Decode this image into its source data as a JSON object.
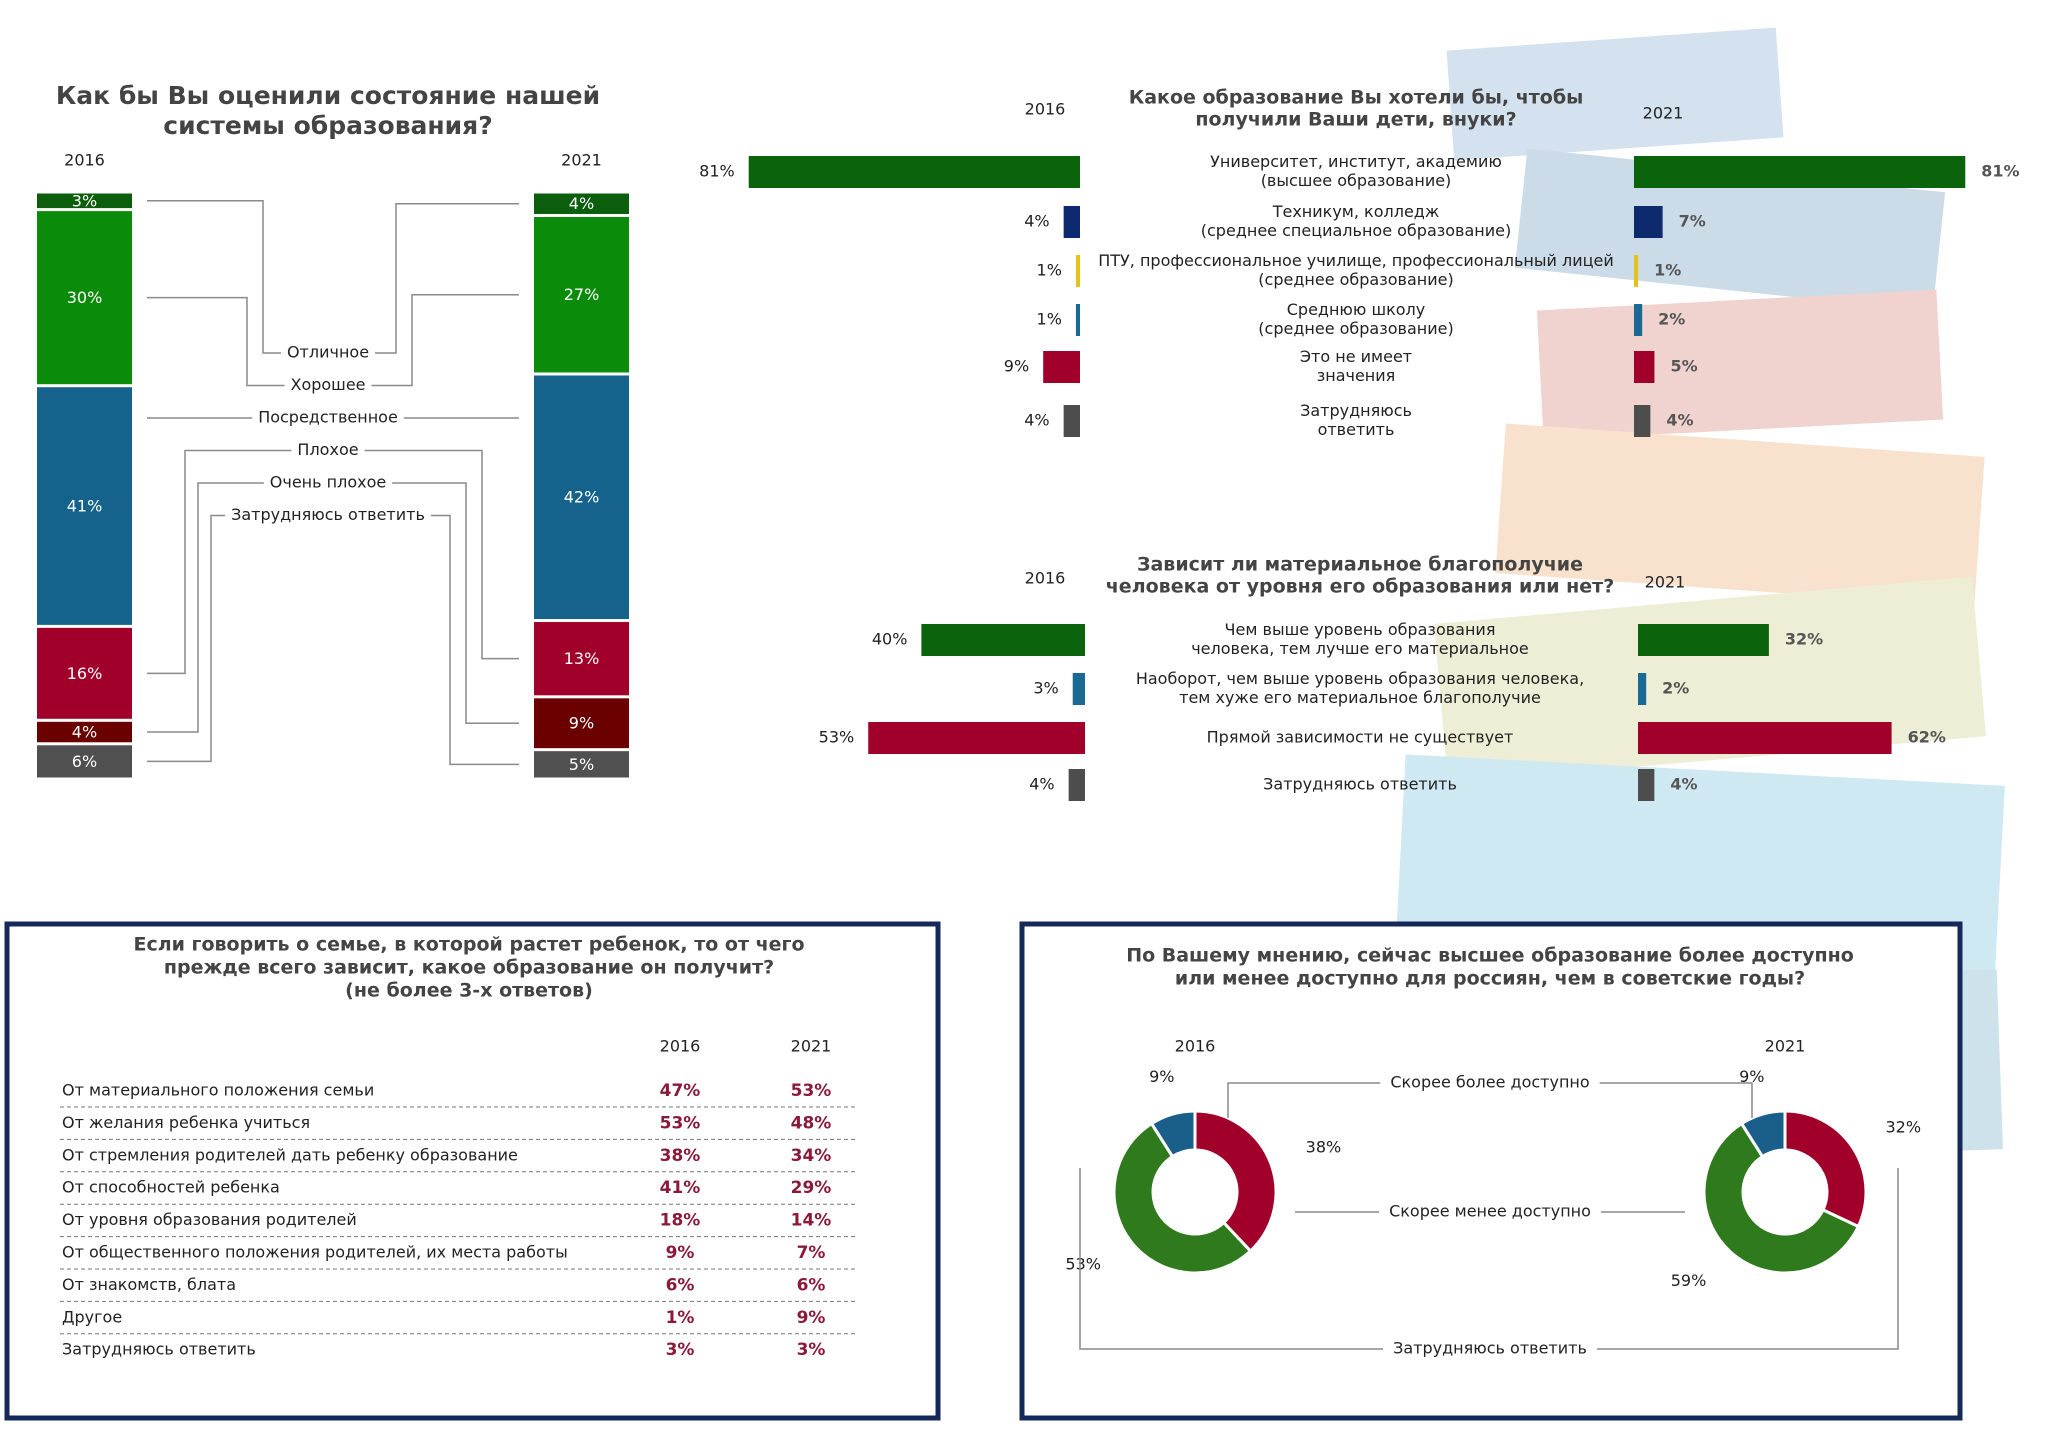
{
  "chart_data": [
    {
      "type": "stacked_bar",
      "title": [
        "Как бы Вы оценили состояние нашей",
        "системы образования?"
      ],
      "categories": [
        "2016",
        "2021"
      ],
      "ylim": [
        0,
        100
      ],
      "series": [
        {
          "name": "Отличное",
          "color": "#0b5e0b",
          "values": [
            3,
            4
          ],
          "value_labels": [
            "3%",
            "4%"
          ]
        },
        {
          "name": "Хорошее",
          "color": "#0a8c0a",
          "values": [
            30,
            27
          ],
          "value_labels": [
            "30%",
            "27%"
          ]
        },
        {
          "name": "Посредственное",
          "color": "#15628d",
          "values": [
            41,
            42
          ],
          "value_labels": [
            "41%",
            "42%"
          ]
        },
        {
          "name": "Плохое",
          "color": "#a1002b",
          "values": [
            16,
            13
          ],
          "value_labels": [
            "16%",
            "13%"
          ]
        },
        {
          "name": "Очень плохое",
          "color": "#6a0000",
          "values": [
            4,
            9
          ],
          "value_labels": [
            "4%",
            "9%"
          ]
        },
        {
          "name": "Затрудняюсь ответить",
          "color": "#505050",
          "values": [
            6,
            5
          ],
          "value_labels": [
            "6%",
            "5%"
          ]
        }
      ]
    },
    {
      "type": "butterfly",
      "title": [
        "Какое образование Вы хотели бы, чтобы",
        "получили Ваши дети, внуки?"
      ],
      "categories": [
        [
          "Университет, институт, академию",
          "(высшее образование)"
        ],
        [
          "Техникум, колледж",
          "(среднее специальное образование)"
        ],
        [
          "ПТУ, профессиональное училище, профессиональный лицей",
          "(среднее образование)"
        ],
        [
          "Среднюю школу",
          "(среднее образование)"
        ],
        [
          "Это не имеет",
          "значения"
        ],
        [
          "Затрудняюсь",
          "ответить"
        ]
      ],
      "colors": [
        "#0b640b",
        "#0d2a6e",
        "#e3c21a",
        "#1a6a94",
        "#a1002b",
        "#4d4d4d"
      ],
      "xlim": [
        0,
        100
      ],
      "series": [
        {
          "name": "2016",
          "values": [
            81,
            4,
            1,
            1,
            9,
            4
          ],
          "value_labels": [
            "81%",
            "4%",
            "1%",
            "1%",
            "9%",
            "4%"
          ]
        },
        {
          "name": "2021",
          "values": [
            81,
            7,
            1,
            2,
            5,
            4
          ],
          "value_labels": [
            "81%",
            "7%",
            "1%",
            "2%",
            "5%",
            "4%"
          ]
        }
      ]
    },
    {
      "type": "butterfly",
      "title": [
        "Зависит ли материальное благополучие",
        "человека от уровня его образования или нет?"
      ],
      "categories": [
        [
          "Чем выше уровень образования",
          "человека, тем лучше его материальное"
        ],
        [
          "Наоборот, чем выше уровень образования человека,",
          "тем хуже его материальное благополучие"
        ],
        [
          "Прямой зависимости не существует"
        ],
        [
          "Затрудняюсь ответить"
        ]
      ],
      "colors": [
        "#0b640b",
        "#1a6a94",
        "#a1002b",
        "#4d4d4d"
      ],
      "xlim": [
        0,
        100
      ],
      "series": [
        {
          "name": "2016",
          "values": [
            40,
            3,
            53,
            4
          ],
          "value_labels": [
            "40%",
            "3%",
            "53%",
            "4%"
          ]
        },
        {
          "name": "2021",
          "values": [
            32,
            2,
            62,
            4
          ],
          "value_labels": [
            "32%",
            "2%",
            "62%",
            "4%"
          ]
        }
      ]
    },
    {
      "type": "donut",
      "title": [
        "По Вашему мнению, сейчас высшее образование более доступно",
        "или менее доступно для россиян, чем в советские годы?"
      ],
      "categories": [
        "Скорее более доступно",
        "Скорее менее доступно",
        "Затрудняюсь ответить"
      ],
      "colors": [
        "#a1002b",
        "#2e7a1c",
        "#1a5f8a"
      ],
      "series": [
        {
          "name": "2016",
          "values": [
            38,
            53,
            9
          ],
          "value_labels": [
            "38%",
            "53%",
            "9%"
          ]
        },
        {
          "name": "2021",
          "values": [
            32,
            59,
            9
          ],
          "value_labels": [
            "32%",
            "59%",
            "9%"
          ]
        }
      ]
    }
  ],
  "table": {
    "title": [
      "Если говорить о семье, в которой растет ребенок, то от чего",
      "прежде всего зависит, какое образование он получит?",
      "(не более 3-х ответов)"
    ],
    "columns": [
      "2016",
      "2021"
    ],
    "rows": [
      [
        "От материального положения семьи",
        "47%",
        "53%"
      ],
      [
        "От желания ребенка учиться",
        "53%",
        "48%"
      ],
      [
        "От стремления родителей дать ребенку образование",
        "38%",
        "34%"
      ],
      [
        "От способностей ребенка",
        "41%",
        "29%"
      ],
      [
        "От уровня образования родителей",
        "18%",
        "14%"
      ],
      [
        "От общественного положения родителей, их места работы",
        "9%",
        "7%"
      ],
      [
        "От знакомств, блата",
        "6%",
        "6%"
      ],
      [
        "Другое",
        "1%",
        "9%"
      ],
      [
        "Затрудняюсь ответить",
        "3%",
        "3%"
      ]
    ]
  }
}
